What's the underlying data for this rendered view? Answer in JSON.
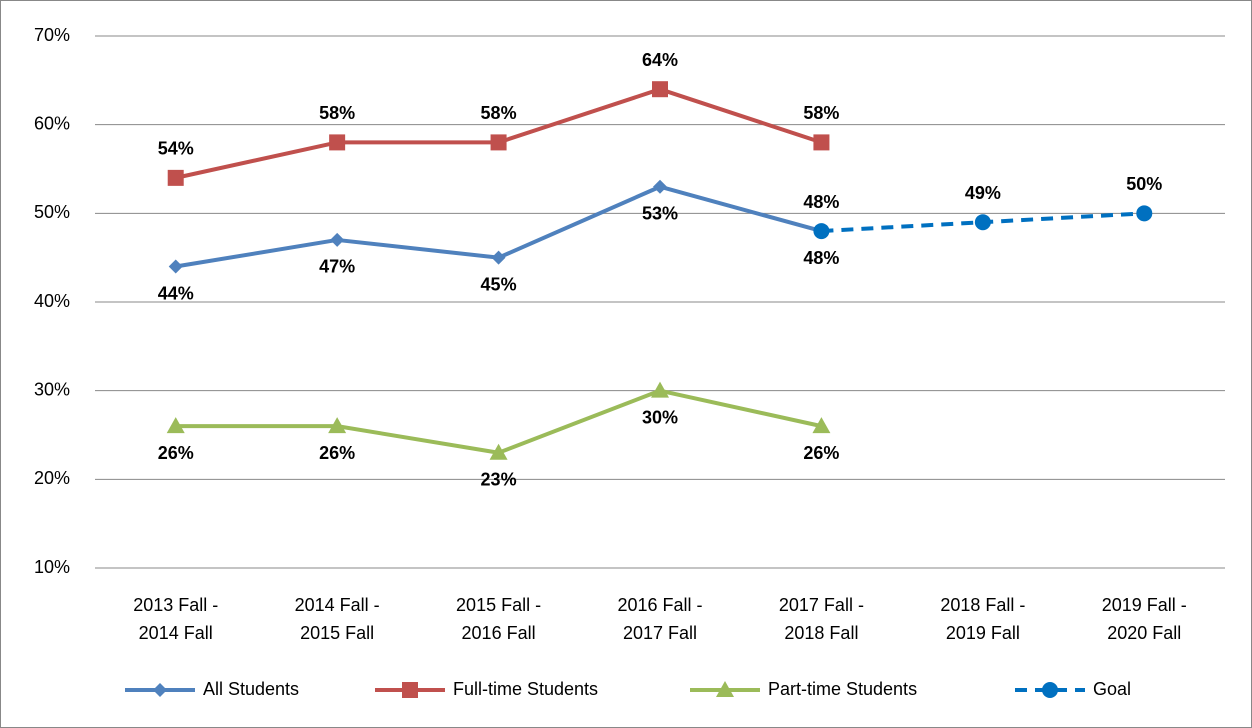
{
  "chart_data": {
    "type": "line",
    "categories": [
      "2013 Fall - 2014 Fall",
      "2014 Fall - 2015 Fall",
      "2015 Fall - 2016 Fall",
      "2016 Fall - 2017 Fall",
      "2017 Fall - 2018 Fall",
      "2018 Fall - 2019 Fall",
      "2019 Fall - 2020 Fall"
    ],
    "series": [
      {
        "name": "All Students",
        "color": "#4f81bd",
        "marker": "diamond",
        "dashed": false,
        "label_position": "below",
        "values": [
          44,
          47,
          45,
          53,
          48,
          null,
          null
        ],
        "value_labels": [
          "44%",
          "47%",
          "45%",
          "53%",
          "48%",
          null,
          null
        ]
      },
      {
        "name": "Full-time Students",
        "color": "#c0504d",
        "marker": "square",
        "dashed": false,
        "label_position": "above",
        "values": [
          54,
          58,
          58,
          64,
          58,
          null,
          null
        ],
        "value_labels": [
          "54%",
          "58%",
          "58%",
          "64%",
          "58%",
          null,
          null
        ]
      },
      {
        "name": "Part-time Students",
        "color": "#9bbb59",
        "marker": "triangle",
        "dashed": false,
        "label_position": "below",
        "values": [
          26,
          26,
          23,
          30,
          26,
          null,
          null
        ],
        "value_labels": [
          "26%",
          "26%",
          "23%",
          "30%",
          "26%",
          null,
          null
        ]
      },
      {
        "name": "Goal",
        "color": "#0070c0",
        "marker": "circle",
        "dashed": true,
        "label_position": "above",
        "values": [
          null,
          null,
          null,
          null,
          48,
          49,
          50
        ],
        "value_labels": [
          null,
          null,
          null,
          null,
          "48%",
          "49%",
          "50%"
        ]
      }
    ],
    "ylim": [
      10,
      70
    ],
    "yticks": [
      {
        "value": 10,
        "label": "10%"
      },
      {
        "value": 20,
        "label": "20%"
      },
      {
        "value": 30,
        "label": "30%"
      },
      {
        "value": 40,
        "label": "40%"
      },
      {
        "value": 50,
        "label": "50%"
      },
      {
        "value": 60,
        "label": "60%"
      },
      {
        "value": 70,
        "label": "70%"
      }
    ],
    "grid": true,
    "legend": "bottom"
  }
}
